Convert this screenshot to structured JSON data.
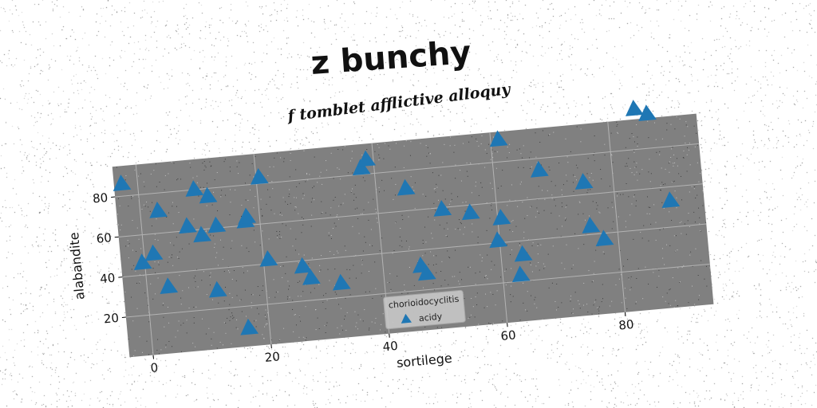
{
  "title": "z bunchy",
  "subtitle": "f tomblet afflictive alloquy",
  "chart_data": {
    "type": "scatter",
    "title": "z bunchy",
    "subtitle": "f tomblet afflictive alloquy",
    "xlabel": "sortilege",
    "ylabel": "alabandite",
    "xlim": [
      -4,
      95
    ],
    "ylim": [
      0,
      95
    ],
    "xticks": [
      0,
      20,
      40,
      60,
      80
    ],
    "yticks": [
      20,
      40,
      60,
      80
    ],
    "grid": true,
    "legend": {
      "title": "chorioidocyclitis",
      "placement": "bottom-center"
    },
    "colors": {
      "marker": "#1f77b4",
      "plot_bg": "#808080",
      "grid": "#b3b3b3"
    },
    "series": [
      {
        "name": "acidy",
        "marker": "triangle",
        "points": [
          [
            -2.7,
            86
          ],
          [
            -0.4,
            46
          ],
          [
            1.6,
            50
          ],
          [
            3.0,
            71
          ],
          [
            3.6,
            33
          ],
          [
            7.7,
            62
          ],
          [
            9.4,
            80
          ],
          [
            10.0,
            57
          ],
          [
            11.6,
            76
          ],
          [
            12.6,
            61
          ],
          [
            11.8,
            29
          ],
          [
            17.5,
            62
          ],
          [
            17.8,
            64
          ],
          [
            16.5,
            9
          ],
          [
            20.5,
            83
          ],
          [
            20.8,
            42
          ],
          [
            26.5,
            37
          ],
          [
            27.7,
            31
          ],
          [
            32.7,
            27
          ],
          [
            37.8,
            83
          ],
          [
            38.8,
            87
          ],
          [
            45.0,
            71
          ],
          [
            46.4,
            32
          ],
          [
            47.2,
            28
          ],
          [
            50.8,
            59
          ],
          [
            55.5,
            56
          ],
          [
            60.6,
            52
          ],
          [
            59.7,
            41
          ],
          [
            61.3,
            91
          ],
          [
            63.7,
            33
          ],
          [
            63.0,
            23
          ],
          [
            67.7,
            74
          ],
          [
            75.0,
            66
          ],
          [
            75.5,
            44
          ],
          [
            77.6,
            37
          ],
          [
            84.6,
            100
          ],
          [
            86.7,
            97
          ],
          [
            89.3,
            53
          ]
        ]
      }
    ]
  }
}
